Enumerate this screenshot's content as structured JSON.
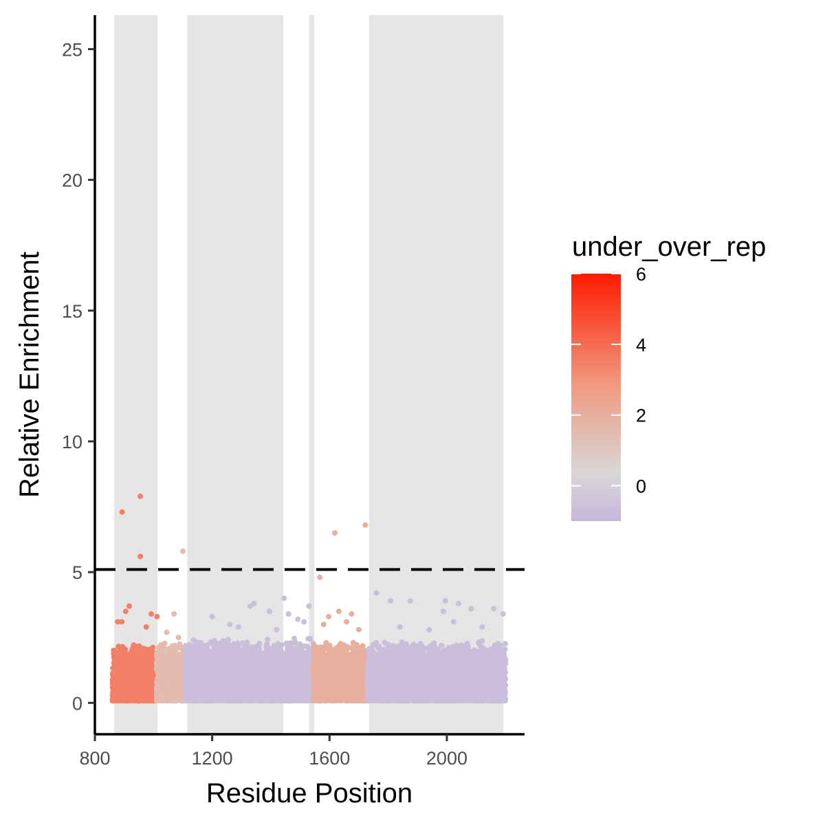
{
  "chart_data": {
    "type": "scatter",
    "title": "",
    "xlabel": "Residue Position",
    "ylabel": "Relative Enrichment",
    "xlim": [
      800,
      2265
    ],
    "ylim": [
      -1.2,
      26.3
    ],
    "x_ticks": [
      800,
      1200,
      1600,
      2000
    ],
    "x_tick_labels": [
      "800",
      "1200",
      "1600",
      "2000"
    ],
    "y_ticks": [
      0,
      5,
      10,
      15,
      20,
      25
    ],
    "y_tick_labels": [
      "0",
      "5",
      "10",
      "15",
      "20",
      "25"
    ],
    "threshold_line": {
      "y": 5.1,
      "style": "dashed"
    },
    "shaded_regions": [
      {
        "x_start": 866,
        "x_end": 1013
      },
      {
        "x_start": 1115,
        "x_end": 1442
      },
      {
        "x_start": 1530,
        "x_end": 1548
      },
      {
        "x_start": 1735,
        "x_end": 2193
      }
    ],
    "segments": [
      {
        "x_start": 860,
        "x_end": 1010,
        "under_over_rep": 3.5,
        "bulk_max": 2.2
      },
      {
        "x_start": 1010,
        "x_end": 1108,
        "under_over_rep": 1.5,
        "bulk_max": 2.3
      },
      {
        "x_start": 1108,
        "x_end": 1545,
        "under_over_rep": -0.7,
        "bulk_max": 2.4
      },
      {
        "x_start": 1545,
        "x_end": 1730,
        "under_over_rep": 2.0,
        "bulk_max": 2.3
      },
      {
        "x_start": 1730,
        "x_end": 2200,
        "under_over_rep": -0.7,
        "bulk_max": 2.3
      }
    ],
    "outliers": [
      {
        "x": 893,
        "y": 7.3,
        "c": 3.5
      },
      {
        "x": 955,
        "y": 7.9,
        "c": 3.5
      },
      {
        "x": 955,
        "y": 5.6,
        "c": 3.5
      },
      {
        "x": 917,
        "y": 3.7,
        "c": 3.5
      },
      {
        "x": 905,
        "y": 3.5,
        "c": 3.5
      },
      {
        "x": 878,
        "y": 3.1,
        "c": 3.5
      },
      {
        "x": 892,
        "y": 3.1,
        "c": 3.5
      },
      {
        "x": 992,
        "y": 3.4,
        "c": 3.5
      },
      {
        "x": 1012,
        "y": 3.3,
        "c": 3.5
      },
      {
        "x": 975,
        "y": 2.9,
        "c": 3.5
      },
      {
        "x": 1100,
        "y": 5.8,
        "c": 1.5
      },
      {
        "x": 1070,
        "y": 3.4,
        "c": 1.5
      },
      {
        "x": 1045,
        "y": 2.7,
        "c": 1.5
      },
      {
        "x": 1085,
        "y": 2.5,
        "c": 1.5
      },
      {
        "x": 1618,
        "y": 6.5,
        "c": 2.0
      },
      {
        "x": 1722,
        "y": 6.8,
        "c": 2.0
      },
      {
        "x": 1567,
        "y": 4.8,
        "c": 2.0
      },
      {
        "x": 1632,
        "y": 3.5,
        "c": 2.0
      },
      {
        "x": 1597,
        "y": 3.3,
        "c": 2.0
      },
      {
        "x": 1675,
        "y": 3.4,
        "c": 2.0
      },
      {
        "x": 1658,
        "y": 3.1,
        "c": 2.0
      },
      {
        "x": 1580,
        "y": 3.0,
        "c": 2.0
      },
      {
        "x": 1700,
        "y": 2.8,
        "c": 2.0
      },
      {
        "x": 1445,
        "y": 4.0,
        "c": -0.7
      },
      {
        "x": 1530,
        "y": 3.7,
        "c": -0.7
      },
      {
        "x": 1343,
        "y": 3.8,
        "c": -0.7
      },
      {
        "x": 1330,
        "y": 3.7,
        "c": -0.7
      },
      {
        "x": 1395,
        "y": 3.5,
        "c": -0.7
      },
      {
        "x": 1460,
        "y": 3.4,
        "c": -0.7
      },
      {
        "x": 1492,
        "y": 3.2,
        "c": -0.7
      },
      {
        "x": 1513,
        "y": 3.1,
        "c": -0.7
      },
      {
        "x": 1200,
        "y": 3.3,
        "c": -0.7
      },
      {
        "x": 1260,
        "y": 3.0,
        "c": -0.7
      },
      {
        "x": 1290,
        "y": 2.9,
        "c": -0.7
      },
      {
        "x": 1420,
        "y": 2.8,
        "c": -0.7
      },
      {
        "x": 1760,
        "y": 4.2,
        "c": -0.7
      },
      {
        "x": 1808,
        "y": 3.9,
        "c": -0.7
      },
      {
        "x": 1875,
        "y": 3.9,
        "c": -0.7
      },
      {
        "x": 1995,
        "y": 3.9,
        "c": -0.7
      },
      {
        "x": 2040,
        "y": 3.8,
        "c": -0.7
      },
      {
        "x": 2160,
        "y": 3.6,
        "c": -0.7
      },
      {
        "x": 2192,
        "y": 3.4,
        "c": -0.7
      },
      {
        "x": 2083,
        "y": 3.6,
        "c": -0.7
      },
      {
        "x": 1988,
        "y": 3.5,
        "c": -0.7
      },
      {
        "x": 2023,
        "y": 3.1,
        "c": -0.7
      },
      {
        "x": 1840,
        "y": 2.9,
        "c": -0.7
      },
      {
        "x": 1940,
        "y": 2.8,
        "c": -0.7
      },
      {
        "x": 2120,
        "y": 2.9,
        "c": -0.7
      }
    ],
    "legend": {
      "title": "under_over_rep",
      "position": "right",
      "range": [
        -1,
        6
      ],
      "ticks": [
        0,
        2,
        4,
        6
      ],
      "tick_labels": [
        "0",
        "2",
        "4",
        "6"
      ],
      "colors": {
        "low": "#c6b6dc",
        "mid": "#d8d8d8",
        "midpoint": 0.3,
        "high": "#ff1a00"
      }
    },
    "grid": false
  }
}
